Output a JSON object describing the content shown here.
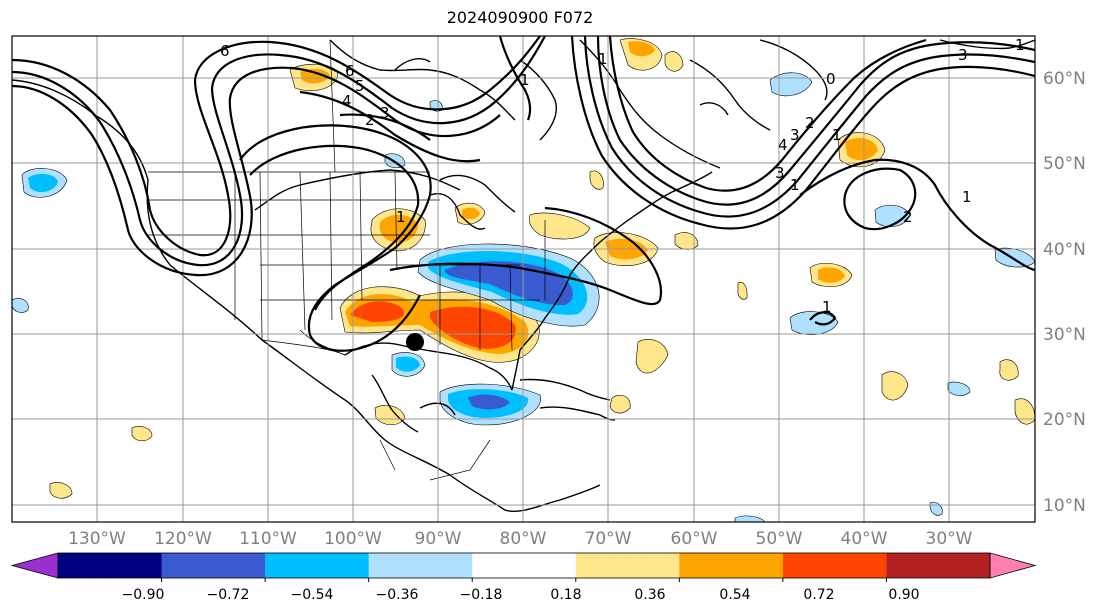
{
  "title": "2024090900 F072",
  "map": {
    "lat_labels": [
      "60°N",
      "50°N",
      "40°N",
      "30°N",
      "20°N",
      "10°N"
    ],
    "lon_labels": [
      "130°W",
      "120°W",
      "110°W",
      "100°W",
      "90°W",
      "80°W",
      "70°W",
      "60°W",
      "50°W",
      "40°W",
      "30°W"
    ],
    "contour_labels": [
      "6",
      "6",
      "5",
      "4",
      "3",
      "2",
      "1",
      "1",
      "1",
      "1",
      "2",
      "3",
      "4",
      "1",
      "3",
      "2",
      "1",
      "1",
      "0",
      "1",
      "3"
    ],
    "colorbar": {
      "ticks": [
        "−0.90",
        "−0.72",
        "−0.54",
        "−0.36",
        "−0.18",
        "0.18",
        "0.36",
        "0.54",
        "0.72",
        "0.90"
      ],
      "colors": [
        "#9b30d0",
        "#000080",
        "#3a5bd0",
        "#00bfff",
        "#b0e0ff",
        "#ffffff",
        "#ffe68a",
        "#ffa500",
        "#ff4500",
        "#b22222",
        "#ff80b0"
      ]
    },
    "marker": "storm-center"
  }
}
